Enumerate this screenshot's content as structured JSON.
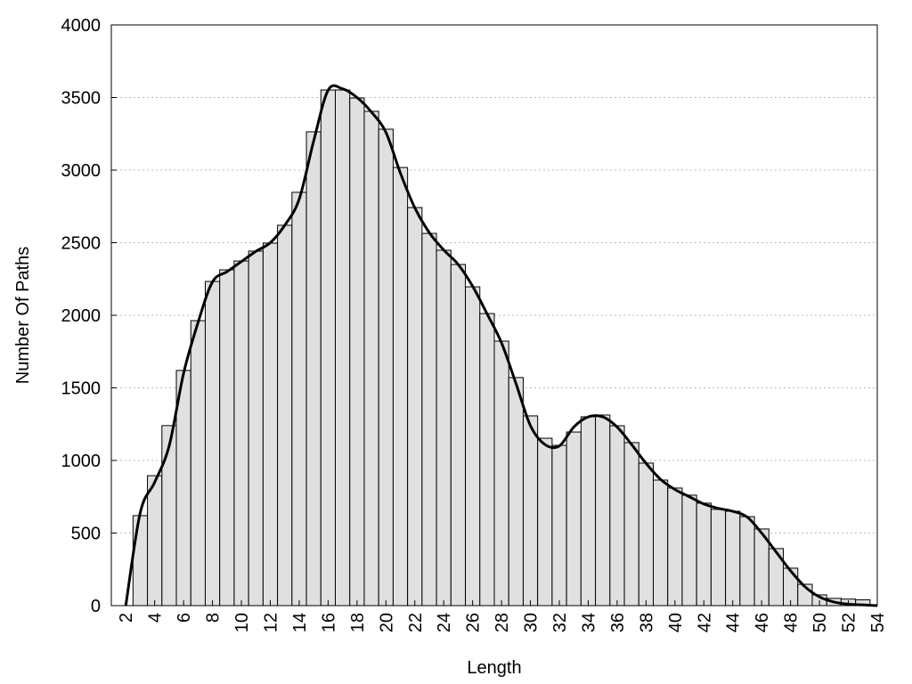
{
  "chart_data": {
    "type": "histogram",
    "x_label": "Length",
    "y_label": "Number Of Paths",
    "bins": [
      2.5,
      3.5,
      4.5,
      5.5,
      6.5,
      7.5,
      8.5,
      9.5,
      10.5,
      11.5,
      12.5,
      13.5,
      14.5,
      15.5,
      16.5,
      17.5,
      18.5,
      19.5,
      20.5,
      21.5,
      22.5,
      23.5,
      24.5,
      25.5,
      26.5,
      27.5,
      28.5,
      29.5,
      30.5,
      31.5,
      32.5,
      33.5,
      34.5,
      35.5,
      36.5,
      37.5,
      38.5,
      39.5,
      40.5,
      41.5,
      42.5,
      43.5,
      44.5,
      45.5,
      46.5,
      47.5,
      48.5,
      49.5,
      50.5,
      51.5,
      52.5,
      53.5
    ],
    "values": [
      620,
      895,
      1240,
      1620,
      1963,
      2233,
      2313,
      2374,
      2442,
      2497,
      2620,
      2847,
      3264,
      3552,
      3552,
      3497,
      3405,
      3282,
      3018,
      2742,
      2564,
      2448,
      2350,
      2196,
      2012,
      1822,
      1571,
      1307,
      1153,
      1104,
      1196,
      1301,
      1313,
      1239,
      1123,
      982,
      865,
      810,
      761,
      706,
      663,
      650,
      613,
      528,
      393,
      258,
      147,
      74,
      50,
      45,
      40
    ],
    "color": "#e0e0e0",
    "curve": {
      "color": "#000000",
      "x": [
        2,
        3,
        4,
        5,
        6,
        7,
        8,
        9,
        10,
        11,
        12,
        13,
        14,
        15,
        16,
        17,
        18,
        19,
        20,
        21,
        22,
        23,
        24,
        25,
        26,
        27,
        28,
        29,
        30,
        31,
        32,
        33,
        34,
        35,
        36,
        37,
        38,
        39,
        40,
        41,
        42,
        43,
        44,
        45,
        46,
        47,
        48,
        49,
        50,
        51,
        52,
        53,
        54
      ],
      "values": [
        0,
        640,
        850,
        1100,
        1600,
        1950,
        2230,
        2300,
        2370,
        2440,
        2500,
        2620,
        2800,
        3200,
        3550,
        3560,
        3500,
        3400,
        3260,
        2980,
        2740,
        2570,
        2450,
        2350,
        2200,
        2010,
        1810,
        1530,
        1240,
        1110,
        1100,
        1230,
        1300,
        1300,
        1230,
        1110,
        980,
        870,
        800,
        750,
        700,
        670,
        650,
        610,
        500,
        370,
        240,
        130,
        60,
        25,
        10,
        5,
        0
      ]
    },
    "xlim": [
      1,
      54
    ],
    "ylim": [
      0,
      4000
    ],
    "xticks": [
      2,
      4,
      6,
      8,
      10,
      12,
      14,
      16,
      18,
      20,
      22,
      24,
      26,
      28,
      30,
      32,
      34,
      36,
      38,
      40,
      42,
      44,
      46,
      48,
      50,
      52,
      54
    ],
    "yticks": [
      0,
      500,
      1000,
      1500,
      2000,
      2500,
      3000,
      3500,
      4000
    ],
    "grid": true
  }
}
